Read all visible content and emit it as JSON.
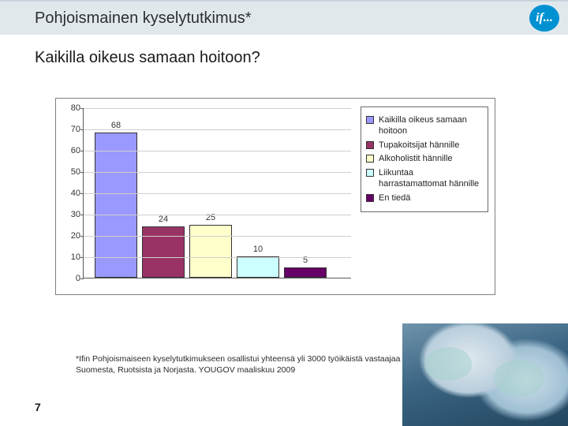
{
  "header": {
    "title": "Pohjoismainen kyselytutkimus*",
    "logo_text": "if...",
    "logo_bg": "#0091d2",
    "logo_fg": "#ffffff"
  },
  "subtitle": "Kaikilla oikeus samaan hoitoon?",
  "chart": {
    "type": "bar",
    "ylim": [
      0,
      80
    ],
    "ytick_step": 10,
    "plot_bg": "#ffffff",
    "grid_color": "#cfcfcf",
    "axis_color": "#5a5a5a",
    "bar_border": "#333333",
    "label_fontsize": 11,
    "bars": [
      {
        "value": 68,
        "color": "#9999ff",
        "legend": "Kaikilla oikeus samaan hoitoon"
      },
      {
        "value": 24,
        "color": "#993366",
        "legend": "Tupakoitsijat hännille"
      },
      {
        "value": 25,
        "color": "#ffffcc",
        "legend": "Alkoholistit hännille"
      },
      {
        "value": 10,
        "color": "#ccffff",
        "legend": "Liikuntaa harrastamattomat hännille"
      },
      {
        "value": 5,
        "color": "#660066",
        "legend": "En tiedä"
      }
    ]
  },
  "footnote": "*Ifin Pohjoismaiseen kyselytutkimukseen osallistui yhteensä yli 3000 työikäistä vastaajaa Suomesta, Ruotsista ja Norjasta. YOUGOV maaliskuu 2009",
  "page_number": "7"
}
